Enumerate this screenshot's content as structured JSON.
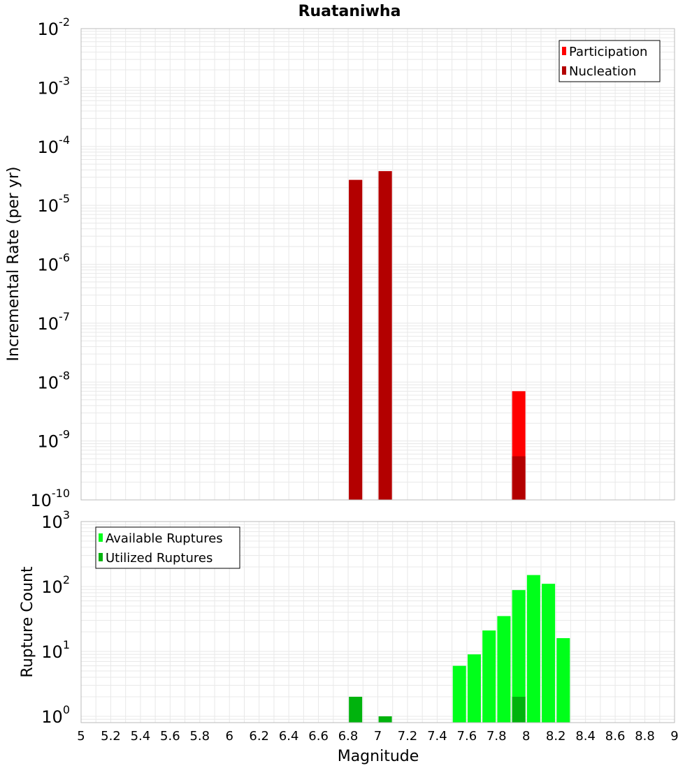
{
  "title": "Ruataniwha",
  "xlabel": "Magnitude",
  "colors": {
    "participation": "#ff0000",
    "nucleation": "#b30000",
    "available": "#00ff1a",
    "utilized": "#00b30d",
    "grid": "#e8e8e8",
    "frame": "#bbbbbb"
  },
  "chart_data": [
    {
      "type": "bar",
      "panel": "top",
      "ylabel": "Incremental Rate (per yr)",
      "yscale": "log",
      "ylim": [
        1e-10,
        0.01
      ],
      "y_tick_exponents": [
        "-10",
        "-9",
        "-8",
        "-7",
        "-6",
        "-5",
        "-4",
        "-3",
        "-2"
      ],
      "xlim": [
        5,
        9
      ],
      "legend_position": "top-right",
      "grid": true,
      "series": [
        {
          "name": "Participation",
          "color": "#ff0000",
          "points": [
            {
              "x": 6.85,
              "y": 2.7e-05
            },
            {
              "x": 7.05,
              "y": 3.8e-05
            },
            {
              "x": 7.95,
              "y": 7e-09
            }
          ]
        },
        {
          "name": "Nucleation",
          "color": "#b30000",
          "points": [
            {
              "x": 6.85,
              "y": 2.7e-05
            },
            {
              "x": 7.05,
              "y": 3.8e-05
            },
            {
              "x": 7.95,
              "y": 5.5e-10
            }
          ]
        }
      ]
    },
    {
      "type": "bar",
      "panel": "bottom",
      "ylabel": "Rupture Count",
      "yscale": "log",
      "ylim": [
        0.8,
        1000
      ],
      "y_tick_exponents": [
        "0",
        "1",
        "2",
        "3"
      ],
      "xlim": [
        5,
        9
      ],
      "x_ticks": [
        "5",
        "5.2",
        "5.4",
        "5.6",
        "5.8",
        "6",
        "6.2",
        "6.4",
        "6.6",
        "6.8",
        "7",
        "7.2",
        "7.4",
        "7.6",
        "7.8",
        "8",
        "8.2",
        "8.4",
        "8.6",
        "8.8",
        "9"
      ],
      "legend_position": "top-left",
      "grid": true,
      "series": [
        {
          "name": "Available Ruptures",
          "color": "#00ff1a",
          "points": [
            {
              "x": 7.55,
              "y": 6
            },
            {
              "x": 7.65,
              "y": 9
            },
            {
              "x": 7.75,
              "y": 21
            },
            {
              "x": 7.85,
              "y": 35
            },
            {
              "x": 7.95,
              "y": 88
            },
            {
              "x": 8.05,
              "y": 150
            },
            {
              "x": 8.15,
              "y": 110
            },
            {
              "x": 8.25,
              "y": 16
            }
          ]
        },
        {
          "name": "Utilized Ruptures",
          "color": "#00b30d",
          "points": [
            {
              "x": 6.85,
              "y": 2
            },
            {
              "x": 7.05,
              "y": 1
            },
            {
              "x": 7.95,
              "y": 2
            }
          ]
        }
      ]
    }
  ]
}
